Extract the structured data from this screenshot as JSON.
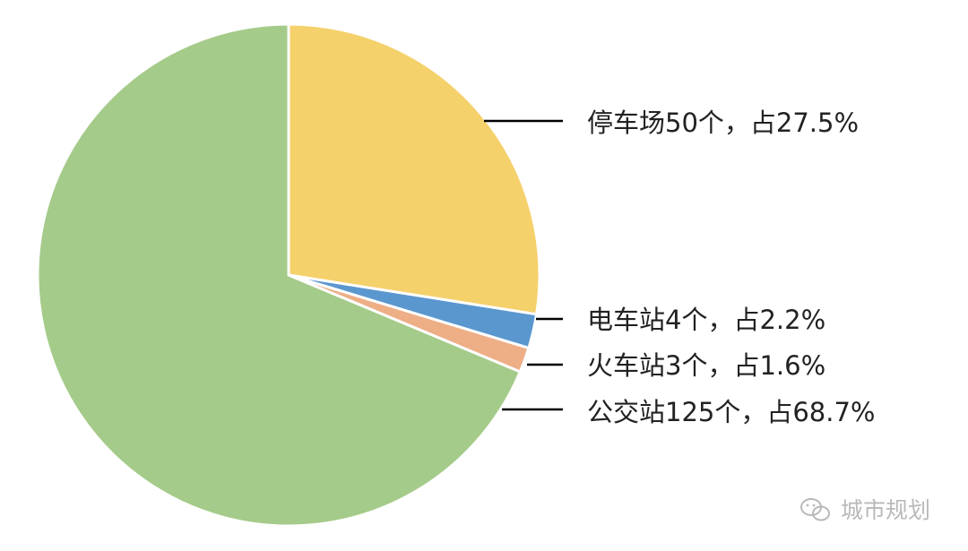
{
  "chart_data": {
    "type": "pie",
    "start_angle_deg": 0,
    "direction": "clockwise",
    "slices": [
      {
        "label": "停车场50个，占27.5%",
        "value": 27.5,
        "count": 50,
        "color": "#F5D16C"
      },
      {
        "label": "电车站4个，占2.2%",
        "value": 2.2,
        "count": 4,
        "color": "#5B97CF"
      },
      {
        "label": "火车站3个，占1.6%",
        "value": 1.6,
        "count": 3,
        "color": "#EEAE86"
      },
      {
        "label": "公交站125个，占68.7%",
        "value": 68.7,
        "count": 125,
        "color": "#A5CB8A"
      }
    ],
    "slice_border_color": "#ffffff",
    "leader_line_color": "#000000",
    "legend": "none"
  },
  "watermark": {
    "text": "城市规划",
    "icon": "wechat-icon"
  }
}
